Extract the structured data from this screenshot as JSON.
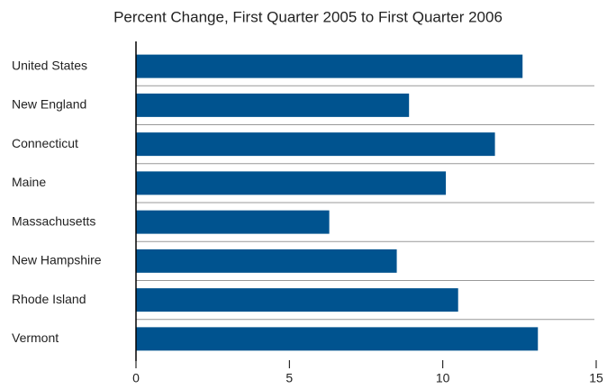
{
  "chart_data": {
    "type": "bar",
    "orientation": "horizontal",
    "title": "Percent Change, First Quarter 2005 to First Quarter 2006",
    "categories": [
      "United States",
      "New England",
      "Connecticut",
      "Maine",
      "Massachusetts",
      "New Hampshire",
      "Rhode Island",
      "Vermont"
    ],
    "values": [
      12.6,
      8.9,
      11.7,
      10.1,
      6.3,
      8.5,
      10.5,
      13.1
    ],
    "color": "#00538f",
    "xlim": [
      0,
      15
    ],
    "xticks": [
      0,
      5,
      10,
      15
    ]
  }
}
